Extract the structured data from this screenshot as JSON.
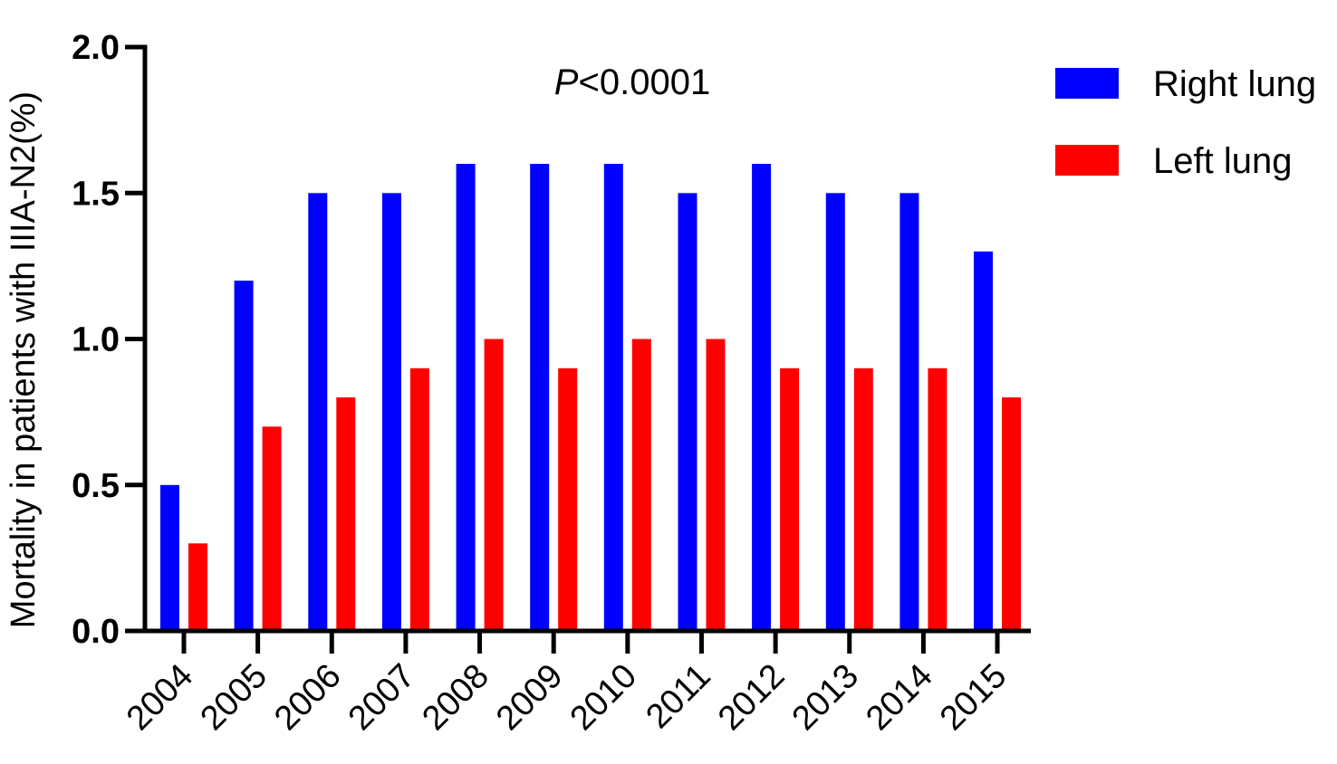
{
  "chart_data": {
    "type": "bar",
    "categories": [
      "2004",
      "2005",
      "2006",
      "2007",
      "2008",
      "2009",
      "2010",
      "2011",
      "2012",
      "2013",
      "2014",
      "2015"
    ],
    "series": [
      {
        "name": "Right lung",
        "color": "#0000ff",
        "values": [
          0.5,
          1.2,
          1.5,
          1.5,
          1.6,
          1.6,
          1.6,
          1.5,
          1.6,
          1.5,
          1.5,
          1.3
        ]
      },
      {
        "name": "Left lung",
        "color": "#ff0000",
        "values": [
          0.3,
          0.7,
          0.8,
          0.9,
          1.0,
          0.9,
          1.0,
          1.0,
          0.9,
          0.9,
          0.9,
          0.8
        ]
      }
    ],
    "ylabel": "Mortality in patients with IIIA-N2(%)",
    "xlabel": "",
    "ylim": [
      0,
      2.0
    ],
    "yticks": [
      "0.0",
      "0.5",
      "1.0",
      "1.5",
      "2.0"
    ],
    "annotation": {
      "italic_part": "P",
      "rest": "<0.0001"
    },
    "legend_position": "top-right",
    "grid": false
  }
}
